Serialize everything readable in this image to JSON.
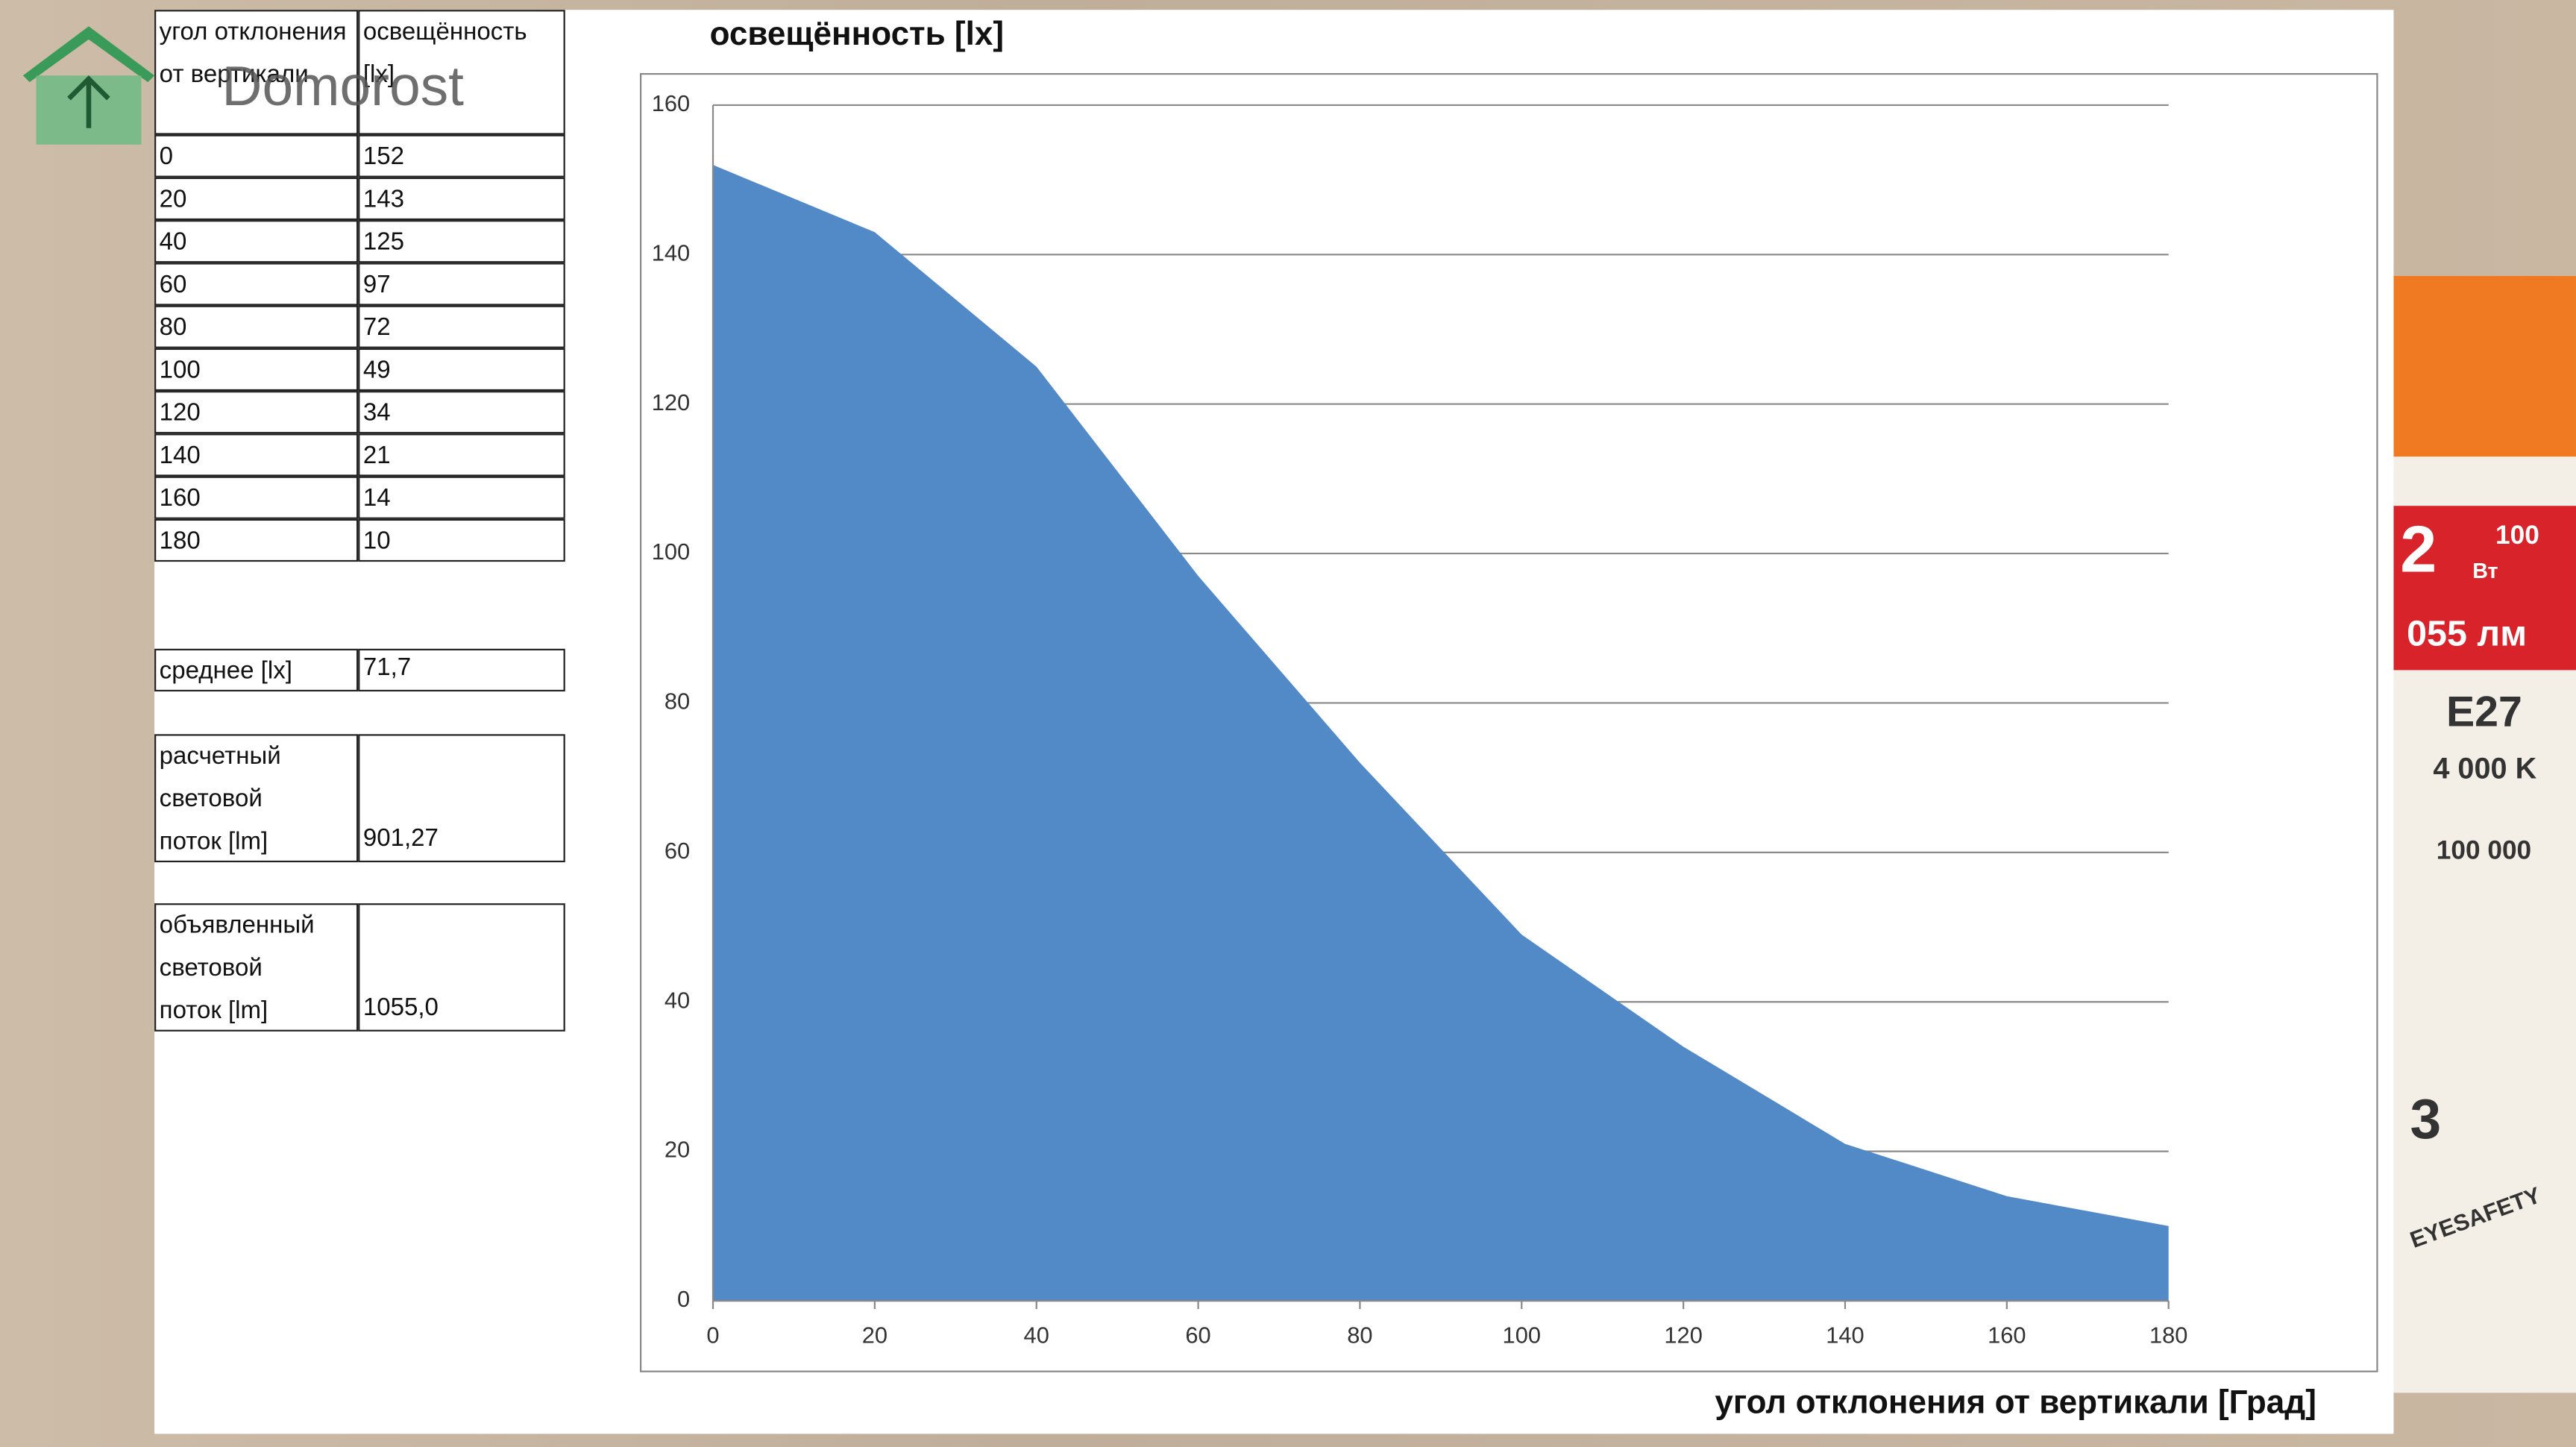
{
  "watermark": "Domorost",
  "table": {
    "header": [
      "угол отклонения от вертикали",
      "освещённость [lx]"
    ],
    "rows": [
      [
        "0",
        "152"
      ],
      [
        "20",
        "143"
      ],
      [
        "40",
        "125"
      ],
      [
        "60",
        "97"
      ],
      [
        "80",
        "72"
      ],
      [
        "100",
        "49"
      ],
      [
        "120",
        "34"
      ],
      [
        "140",
        "21"
      ],
      [
        "160",
        "14"
      ],
      [
        "180",
        "10"
      ]
    ]
  },
  "summary": [
    [
      "среднее  [lx]",
      "71,7"
    ],
    [
      "расчетный световой поток  [lm]",
      "901,27"
    ],
    [
      "объявленный световой поток  [lm]",
      "1055,0"
    ]
  ],
  "packaging": [
    "2",
    "Вт",
    "100",
    "055 лм",
    "E27",
    "4 000 K",
    "100 000",
    "3",
    "EYESAFETY"
  ],
  "chart_data": {
    "type": "area",
    "title": "освещённость [lx]",
    "x_label": "угол отклонения от вертикали  [Град]",
    "x": [
      0,
      20,
      40,
      60,
      80,
      100,
      120,
      140,
      160,
      180
    ],
    "values": [
      152,
      143,
      125,
      97,
      72,
      49,
      34,
      21,
      14,
      10
    ],
    "color": "#5289c7",
    "xlim": [
      0,
      180
    ],
    "xticks": [
      0,
      20,
      40,
      60,
      80,
      100,
      120,
      140,
      160,
      180
    ],
    "ylim": [
      0,
      160
    ],
    "yticks": [
      0,
      20,
      40,
      60,
      80,
      100,
      120,
      140,
      160
    ],
    "grid": true
  }
}
